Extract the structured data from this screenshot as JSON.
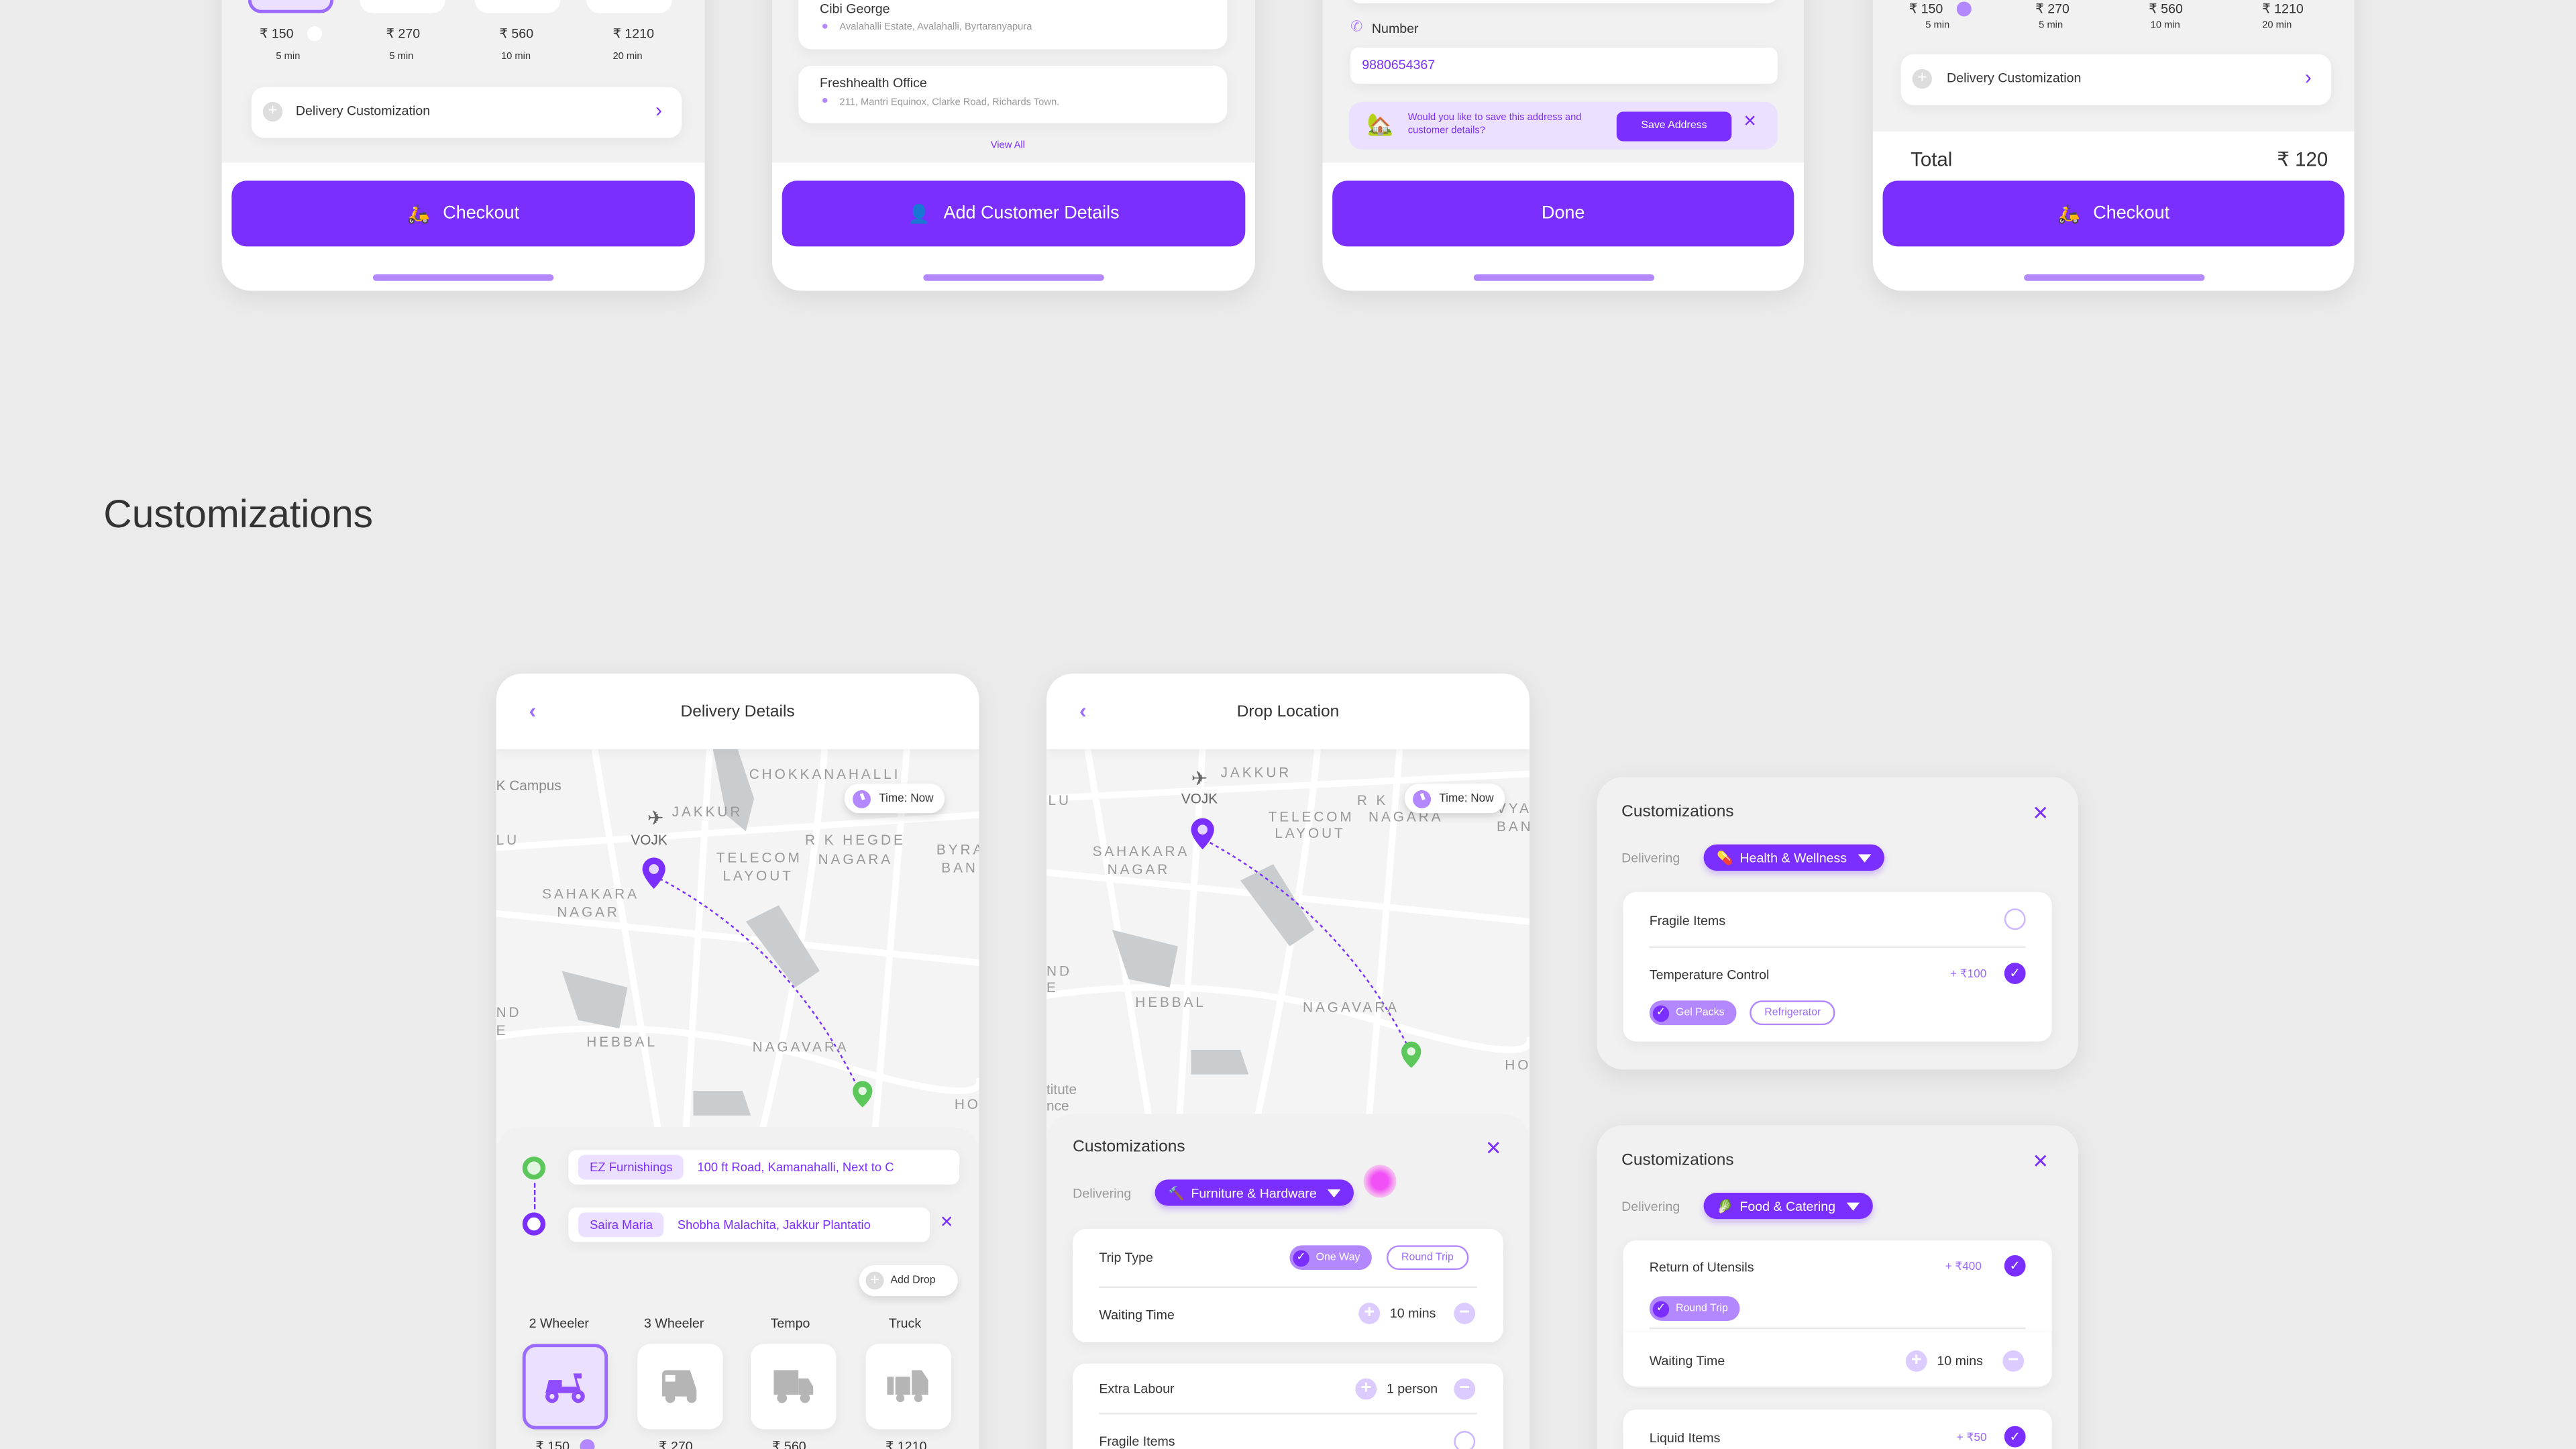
{
  "colors": {
    "accent": "#7b2fff",
    "accent_light": "#ebe0ff",
    "accent_mid": "#b388ff",
    "pickup": "#5cc85c"
  },
  "top_screens": {
    "screen1": {
      "prices": [
        "₹ 150",
        "₹ 270",
        "₹ 560",
        "₹ 1210"
      ],
      "times": [
        "5 min",
        "5 min",
        "10 min",
        "20 min"
      ],
      "customization": "Delivery Customization",
      "button": "Checkout"
    },
    "screen2": {
      "contacts": [
        {
          "name": "Cibi George",
          "address": "Avalahalli Estate, Avalahalli, Byrtaranyapura"
        },
        {
          "name": "Freshhealth Office",
          "address": "211, Mantri Equinox, Clarke Road, Richards Town."
        }
      ],
      "view_all": "View All",
      "button": "Add Customer Details"
    },
    "screen3": {
      "number_label": "Number",
      "number_value": "9880654367",
      "save_prompt": "Would you like to save this address and customer details?",
      "save_button": "Save Address",
      "button": "Done"
    },
    "screen4": {
      "prices": [
        "₹ 150",
        "₹ 270",
        "₹ 560",
        "₹ 1210"
      ],
      "times": [
        "5 min",
        "5 min",
        "10 min",
        "20 min"
      ],
      "customization": "Delivery Customization",
      "total_label": "Total",
      "total_value": "₹ 120",
      "button": "Checkout"
    }
  },
  "section_title": "Customizations",
  "delivery_details": {
    "title": "Delivery Details",
    "time": "Time: Now",
    "map_labels": [
      "K Campus",
      "CHOKKANAHALLI",
      "JAKKUR",
      "VOJK",
      "LU",
      "R K HEGDE",
      "NAGARA",
      "TELECOM",
      "LAYOUT",
      "BYRA",
      "BAN",
      "SAHAKARA",
      "NAGAR",
      "ND",
      "E",
      "HEBBAL",
      "NAGAVARA",
      "HO"
    ],
    "pickup": {
      "name": "EZ Furnishings",
      "address": "100 ft Road, Kamanahalli, Next to C"
    },
    "drop": {
      "name": "Saira Maria",
      "address": "Shobha Malachita, Jakkur Plantatio"
    },
    "add_drop": "Add Drop",
    "vehicles": [
      {
        "label": "2 Wheeler",
        "icon": "scooter-icon",
        "price": "₹ 150",
        "selected": true
      },
      {
        "label": "3 Wheeler",
        "icon": "auto-rickshaw-icon",
        "price": "₹ 270"
      },
      {
        "label": "Tempo",
        "icon": "tempo-icon",
        "price": "₹ 560"
      },
      {
        "label": "Truck",
        "icon": "truck-icon",
        "price": "₹ 1210"
      }
    ]
  },
  "drop_location": {
    "title": "Drop Location",
    "time": "Time: Now",
    "map_labels": [
      "JAKKUR",
      "VOJK",
      "LU",
      "TELECOM",
      "LAYOUT",
      "R K",
      "NAGARA",
      "VYA",
      "BAN",
      "SAHAKARA",
      "NAGAR",
      "ND",
      "E",
      "HEBBAL",
      "NAGAVARA",
      "HO",
      "titute",
      "nce"
    ],
    "sheet": {
      "title": "Customizations",
      "delivering_label": "Delivering",
      "category": "Furniture & Hardware",
      "category_emoji": "🔨",
      "trip_type": "Trip Type",
      "one_way": "One Way",
      "round_trip": "Round Trip",
      "waiting_time": "Waiting Time",
      "waiting_value": "10 mins",
      "extra_labour": "Extra Labour",
      "labour_value": "1 person",
      "fragile": "Fragile Items"
    }
  },
  "health_panel": {
    "title": "Customizations",
    "delivering_label": "Delivering",
    "category": "Health & Wellness",
    "category_emoji": "💊",
    "fragile": "Fragile Items",
    "temperature": "Temperature Control",
    "temperature_price": "+ ₹100",
    "gel_packs": "Gel Packs",
    "refrigerator": "Refrigerator"
  },
  "food_panel": {
    "title": "Customizations",
    "delivering_label": "Delivering",
    "category": "Food & Catering",
    "category_emoji": "🥬",
    "utensils": "Return of Utensils",
    "utensils_price": "+ ₹400",
    "round_trip": "Round Trip",
    "waiting_time": "Waiting Time",
    "waiting_value": "10 mins",
    "liquid": "Liquid Items",
    "liquid_price": "+ ₹50"
  }
}
